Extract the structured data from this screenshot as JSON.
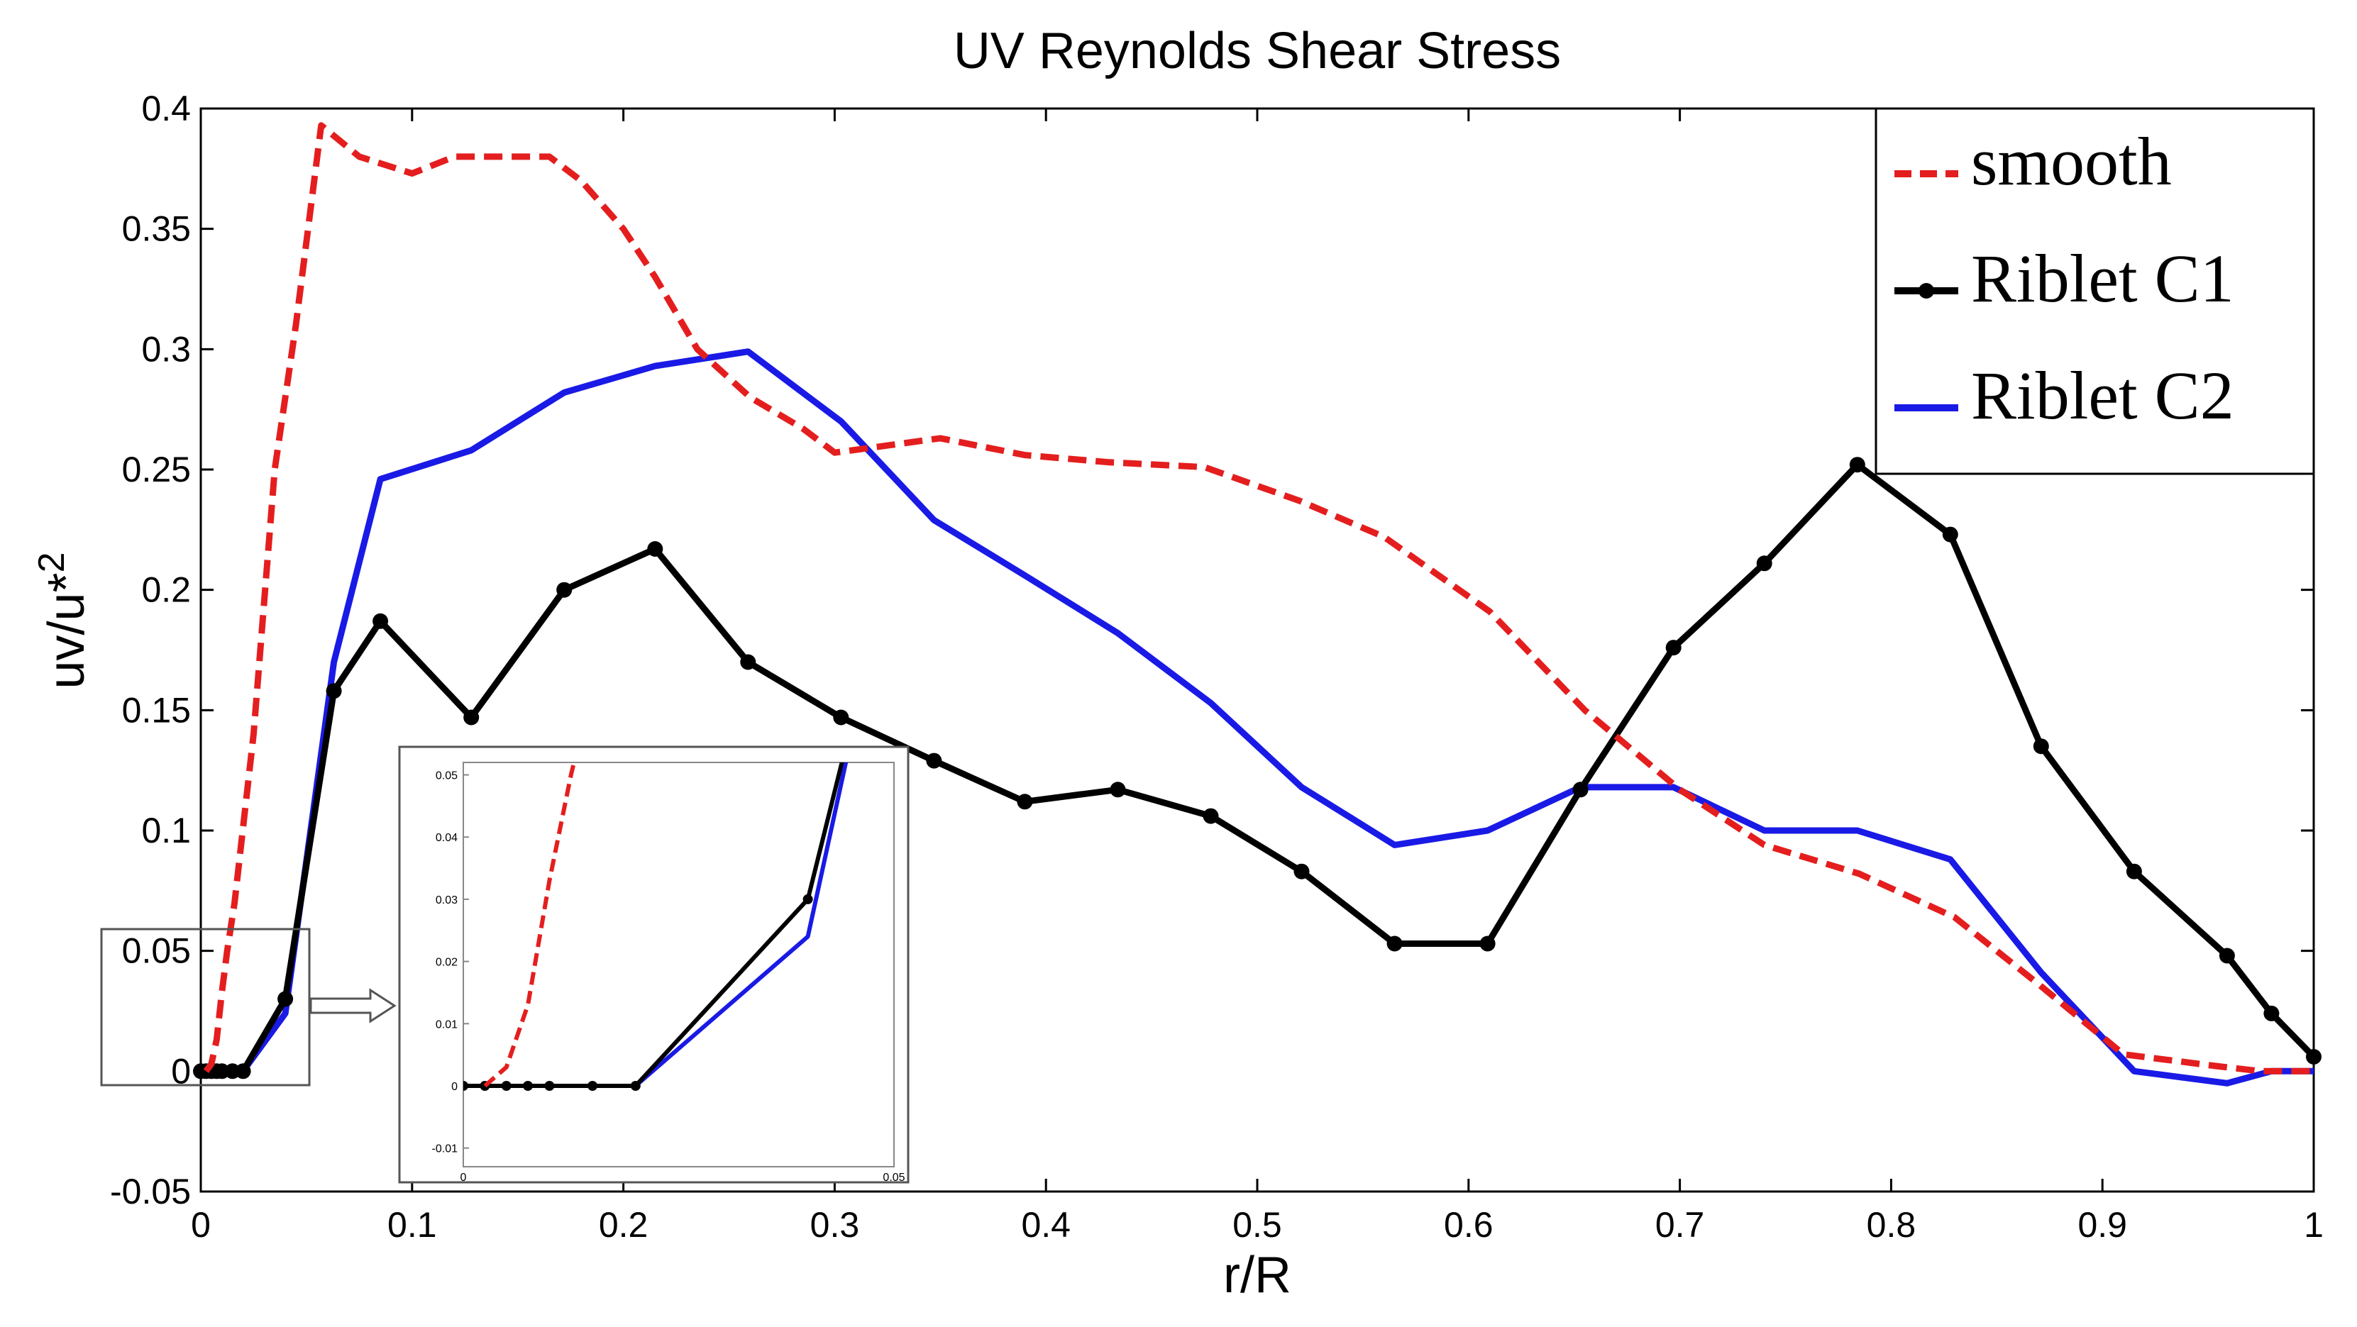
{
  "chart_data": {
    "type": "line",
    "title": "UV Reynolds Shear Stress",
    "xlabel": "r/R",
    "ylabel_base": "uv/u*",
    "ylabel_sup": "2",
    "xlim": [
      0,
      1
    ],
    "ylim": [
      -0.05,
      0.4
    ],
    "xticks": [
      0,
      0.1,
      0.2,
      0.3,
      0.4,
      0.5,
      0.6,
      0.7,
      0.8,
      0.9,
      1
    ],
    "xtick_labels": [
      "0",
      "0.1",
      "0.2",
      "0.3",
      "0.4",
      "0.5",
      "0.6",
      "0.7",
      "0.8",
      "0.9",
      "1"
    ],
    "yticks": [
      -0.05,
      0,
      0.05,
      0.1,
      0.15,
      0.2,
      0.25,
      0.3,
      0.35,
      0.4
    ],
    "ytick_labels": [
      "-0.05",
      "0",
      "0.05",
      "0.1",
      "0.15",
      "0.2",
      "0.25",
      "0.3",
      "0.35",
      "0.4"
    ],
    "legend_position": "top-right",
    "series": [
      {
        "name": "smooth",
        "color": "#e41e1e",
        "style": "dashed",
        "markers": false,
        "x": [
          0.0025,
          0.005,
          0.0075,
          0.01,
          0.0125,
          0.016,
          0.025,
          0.035,
          0.045,
          0.057,
          0.075,
          0.1,
          0.12,
          0.145,
          0.165,
          0.18,
          0.2,
          0.215,
          0.235,
          0.26,
          0.285,
          0.3,
          0.325,
          0.35,
          0.39,
          0.43,
          0.475,
          0.52,
          0.56,
          0.61,
          0.655,
          0.7,
          0.74,
          0.785,
          0.83,
          0.87,
          0.91,
          0.955,
          0.975,
          1.0
        ],
        "y": [
          0.0,
          0.003,
          0.013,
          0.033,
          0.05,
          0.07,
          0.14,
          0.25,
          0.31,
          0.393,
          0.38,
          0.373,
          0.38,
          0.38,
          0.38,
          0.37,
          0.35,
          0.33,
          0.3,
          0.28,
          0.267,
          0.257,
          0.26,
          0.263,
          0.256,
          0.253,
          0.251,
          0.237,
          0.222,
          0.191,
          0.15,
          0.117,
          0.094,
          0.082,
          0.064,
          0.036,
          0.007,
          0.002,
          0.0,
          0.0
        ]
      },
      {
        "name": "Riblet C1",
        "color": "#000000",
        "style": "solid",
        "markers": true,
        "x": [
          0.0,
          0.0025,
          0.005,
          0.0075,
          0.01,
          0.015,
          0.02,
          0.04,
          0.063,
          0.085,
          0.128,
          0.172,
          0.215,
          0.259,
          0.303,
          0.347,
          0.39,
          0.434,
          0.478,
          0.521,
          0.565,
          0.609,
          0.653,
          0.697,
          0.74,
          0.784,
          0.828,
          0.871,
          0.915,
          0.959,
          0.98,
          1.0
        ],
        "y": [
          0.0,
          0.0,
          0.0,
          0.0,
          0.0,
          0.0,
          0.0,
          0.03,
          0.158,
          0.187,
          0.147,
          0.2,
          0.217,
          0.17,
          0.147,
          0.129,
          0.112,
          0.117,
          0.106,
          0.083,
          0.053,
          0.053,
          0.117,
          0.176,
          0.211,
          0.252,
          0.223,
          0.135,
          0.083,
          0.048,
          0.024,
          0.006
        ]
      },
      {
        "name": "Riblet C2",
        "color": "#1a1ae6",
        "style": "solid",
        "markers": false,
        "x": [
          0.0,
          0.02,
          0.04,
          0.063,
          0.085,
          0.128,
          0.172,
          0.215,
          0.259,
          0.303,
          0.347,
          0.39,
          0.434,
          0.478,
          0.521,
          0.565,
          0.609,
          0.653,
          0.697,
          0.74,
          0.784,
          0.828,
          0.871,
          0.915,
          0.959,
          0.98,
          1.0
        ],
        "y": [
          0.0,
          0.0,
          0.024,
          0.17,
          0.246,
          0.258,
          0.282,
          0.293,
          0.299,
          0.27,
          0.229,
          0.206,
          0.182,
          0.153,
          0.118,
          0.094,
          0.1,
          0.118,
          0.118,
          0.1,
          0.1,
          0.088,
          0.041,
          0.0,
          -0.005,
          0.0,
          0.0
        ]
      }
    ],
    "inset": {
      "source_xlim": [
        0,
        0.05
      ],
      "source_ylim": [
        -0.013,
        0.052
      ],
      "xtick_labels": [
        "0",
        "0.05"
      ],
      "ytick_labels": [
        "-0.01",
        "0",
        "0.01",
        "0.02",
        "0.03",
        "0.04",
        "0.05"
      ]
    }
  }
}
